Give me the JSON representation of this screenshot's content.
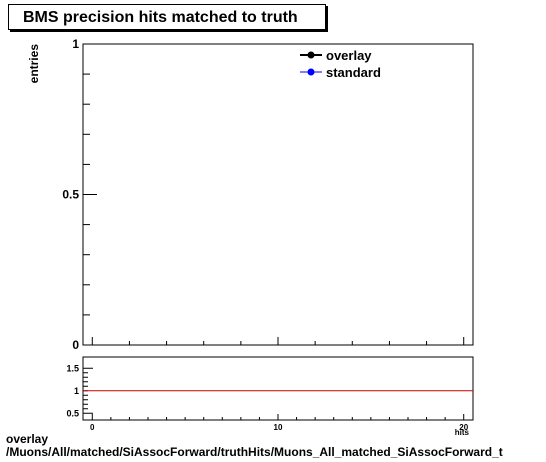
{
  "title": "BMS precision hits matched to truth",
  "footer": {
    "line1": "overlay",
    "line2": "/Muons/All/matched/SiAssocForward/truthHits/Muons_All_matched_SiAssocForward_t"
  },
  "chart_data": [
    {
      "type": "line",
      "ylabel": "entries",
      "ylim": [
        0,
        1
      ],
      "xlim": [
        -0.5,
        20.5
      ],
      "y_tick_labels": [
        "0",
        "0.5",
        "1"
      ],
      "x_tick_labels": [
        "0",
        "10",
        "20"
      ],
      "legend": [
        {
          "name": "overlay",
          "color": "#000000"
        },
        {
          "name": "standard",
          "color": "#0000ff"
        }
      ],
      "legend_position": "top-right",
      "series": [
        {
          "name": "overlay",
          "x": [],
          "y": []
        },
        {
          "name": "standard",
          "x": [],
          "y": []
        }
      ],
      "grid": false
    },
    {
      "type": "line",
      "ylim": [
        0.35,
        1.75
      ],
      "xlim": [
        -0.5,
        20.5
      ],
      "y_tick_labels": [
        "0.5",
        "1",
        "1.5"
      ],
      "x_tick_labels": [
        "0",
        "10",
        "20"
      ],
      "xlabel_partial": "hits",
      "reference_line": {
        "y": 1,
        "color": "#cc0000"
      },
      "grid": false
    }
  ]
}
